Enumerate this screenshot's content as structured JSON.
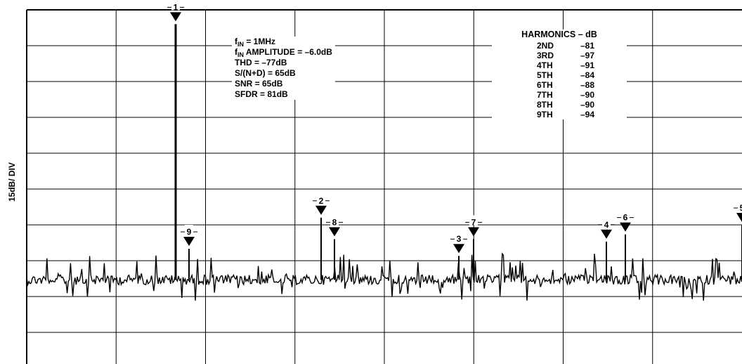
{
  "chart_data": {
    "type": "spectrum",
    "ylabel": "15dB/ DIV",
    "y_scale_db_per_div": 15,
    "grid": true,
    "divisions": {
      "x": 8,
      "y": 10
    },
    "fundamental": {
      "label": "1",
      "level_db": -6.0
    },
    "markers": [
      {
        "label": "1",
        "value_db": -6.0
      },
      {
        "label": "2",
        "value_db": -87
      },
      {
        "label": "3",
        "value_db": -103
      },
      {
        "label": "4",
        "value_db": -97
      },
      {
        "label": "5",
        "value_db": -90
      },
      {
        "label": "6",
        "value_db": -94
      },
      {
        "label": "7",
        "value_db": -96
      },
      {
        "label": "8",
        "value_db": -96
      },
      {
        "label": "9",
        "value_db": -100
      }
    ],
    "noise_floor_level_db": -113,
    "parameters": {
      "fin": "= 1MHz",
      "fin_amplitude": "AMPLITUDE = –6.0dB",
      "thd": "THD = –77dB",
      "sinad": "S/(N+D) = 65dB",
      "snr": "SNR = 65dB",
      "sfdr": "SFDR = 81dB"
    },
    "harmonics_table": {
      "title": "HARMONICS – dB",
      "rows": [
        {
          "name": "2ND",
          "value": "–81"
        },
        {
          "name": "3RD",
          "value": "–97"
        },
        {
          "name": "4TH",
          "value": "–91"
        },
        {
          "name": "5TH",
          "value": "–84"
        },
        {
          "name": "6TH",
          "value": "–88"
        },
        {
          "name": "7TH",
          "value": "–90"
        },
        {
          "name": "8TH",
          "value": "–90"
        },
        {
          "name": "9TH",
          "value": "–94"
        }
      ]
    }
  }
}
